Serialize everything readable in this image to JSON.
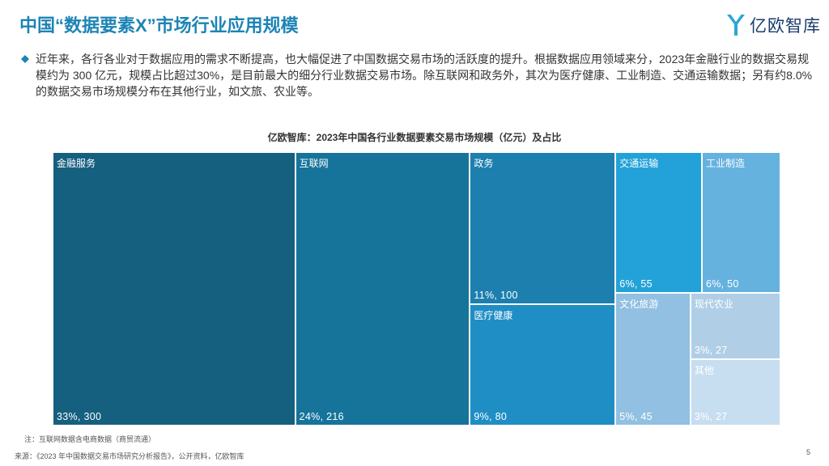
{
  "page": {
    "title": "中国“数据要素X”市场行业应用规模",
    "logo_text": "亿欧智库",
    "bullet_text": "近年来，各行各业对于数据应用的需求不断提高，也大幅促进了中国数据交易市场的活跃度的提升。根据数据应用领域来分，2023年金融行业的数据交易规模约为 300 亿元，规模占比超过30%，是目前最大的细分行业数据交易市场。除互联网和政务外，其次为医疗健康、工业制造、交通运输数据；另有约8.0%的数据交易市场规模分布在其他行业，如文旅、农业等。",
    "note": "注：互联网数据含电商数据（商贸流通）",
    "source": "来源：《2023 年中国数据交易市场研究分析报告》，公开资料，亿欧智库",
    "page_number": "5"
  },
  "colors": {
    "title": "#1d84b5",
    "logo_y": "#2aa7d8",
    "logo_text": "#1a3d6b",
    "bullet": "#1d84b5"
  },
  "chart_data": {
    "type": "treemap",
    "title": "亿欧智库：2023年中国各行业数据要素交易市场规模（亿元）及占比",
    "unit": "亿元",
    "items": [
      {
        "name": "金融服务",
        "value": 300,
        "share": "33%",
        "value_label": "33%, 300",
        "color": "#155f7f"
      },
      {
        "name": "互联网",
        "value": 216,
        "share": "24%",
        "value_label": "24%, 216",
        "color": "#16749b"
      },
      {
        "name": "政务",
        "value": 100,
        "share": "11%",
        "value_label": "11%, 100",
        "color": "#1d7fae"
      },
      {
        "name": "医疗健康",
        "value": 80,
        "share": "9%",
        "value_label": "9%, 80",
        "color": "#1f8ec5"
      },
      {
        "name": "交通运输",
        "value": 55,
        "share": "6%",
        "value_label": "6%, 55",
        "color": "#23a2d9"
      },
      {
        "name": "工业制造",
        "value": 50,
        "share": "6%",
        "value_label": "6%, 50",
        "color": "#66b2df"
      },
      {
        "name": "文化旅游",
        "value": 45,
        "share": "5%",
        "value_label": "5%, 45",
        "color": "#91c0e2"
      },
      {
        "name": "现代农业",
        "value": 27,
        "share": "3%",
        "value_label": "3%, 27",
        "color": "#b0cfe7"
      },
      {
        "name": "其他",
        "value": 27,
        "share": "3%",
        "value_label": "3%, 27",
        "color": "#c7ddf0"
      }
    ]
  }
}
